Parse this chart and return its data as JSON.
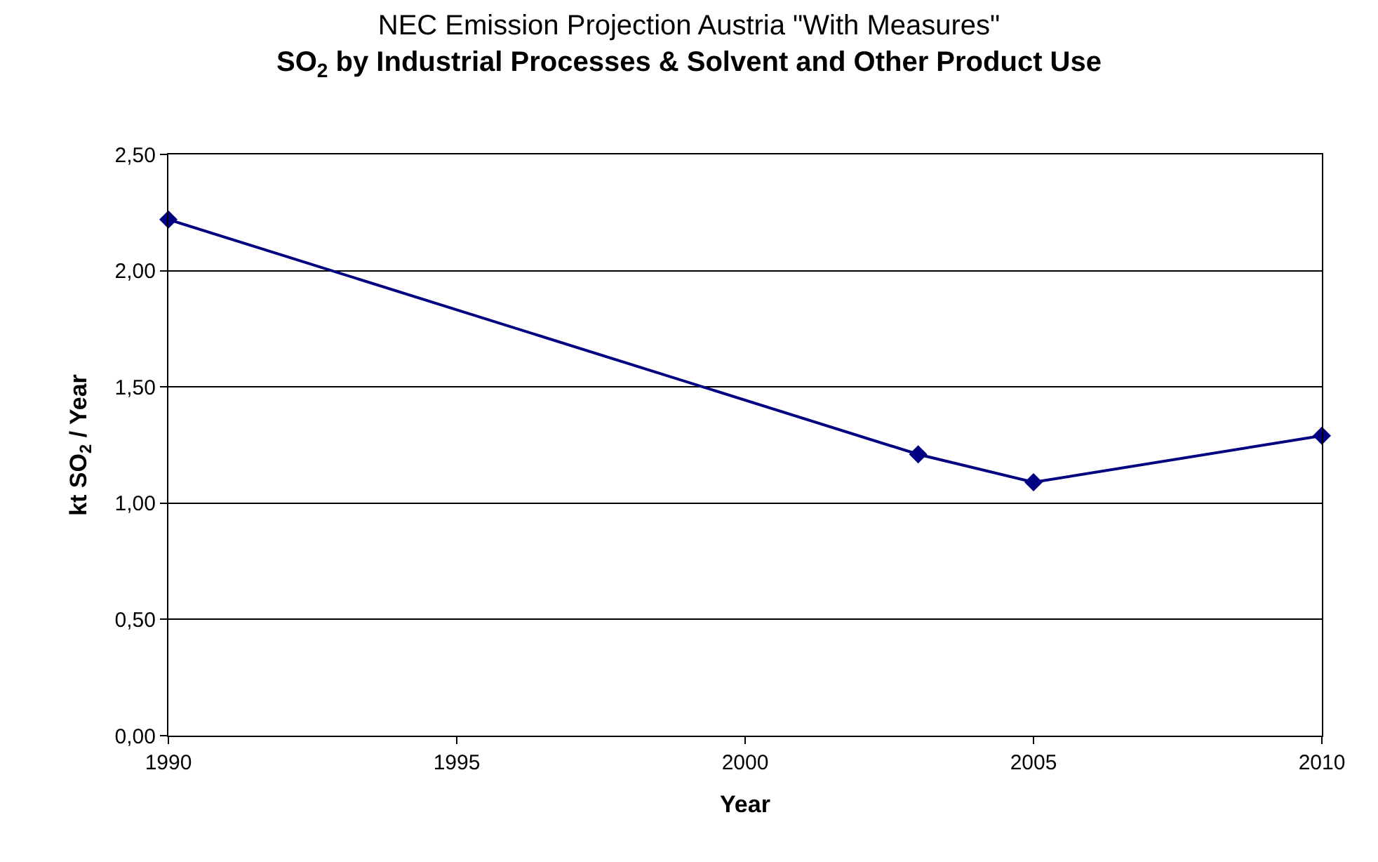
{
  "chart_data": {
    "type": "line",
    "title": "NEC Emission Projection Austria \"With Measures\"",
    "subtitle": "SO$_{2}$ by Industrial Processes & Solvent and Other Product Use",
    "xlabel": "Year",
    "ylabel": "kt SO$_{2}$ / Year",
    "x": [
      1990,
      2003,
      2005,
      2010
    ],
    "series": [
      {
        "color": "#000080",
        "values": [
          2.22,
          1.21,
          1.09,
          1.29
        ]
      }
    ],
    "xlim": [
      1990,
      2010
    ],
    "xticks": [
      1990,
      1995,
      2000,
      2005,
      2010
    ],
    "ylim": [
      0,
      2.5
    ],
    "yticks": [
      {
        "value": 0,
        "label": "0,00"
      },
      {
        "value": 0.5,
        "label": "0,50"
      },
      {
        "value": 1,
        "label": "1,00"
      },
      {
        "value": 1.5,
        "label": "1,50"
      },
      {
        "value": 2,
        "label": "2,00"
      },
      {
        "value": 2.5,
        "label": "2,50"
      }
    ],
    "grid": "y",
    "marker": "diamond",
    "line_style": "solid",
    "legend": false
  }
}
